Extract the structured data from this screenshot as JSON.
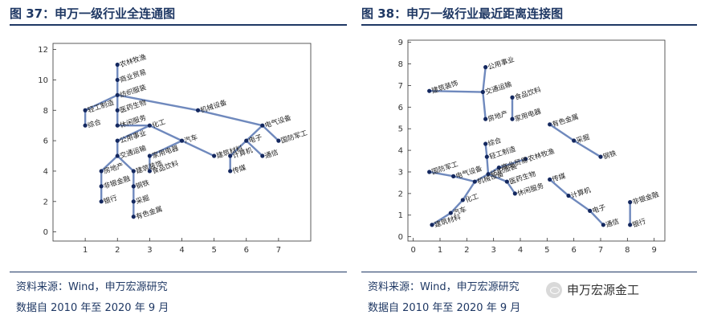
{
  "panels": [
    {
      "title": "图 37：申万一级行业全连通图",
      "source": "资料来源：Wind，申万宏源研究",
      "period": "数据自 2010 年至 2020 年 9 月"
    },
    {
      "title": "图 38：申万一级行业最近距离连接图",
      "source": "资料来源：Wind，申万宏源研究",
      "period": "数据自 2010 年至 2020 年 9 月"
    }
  ],
  "watermark": {
    "text": "申万宏源金工",
    "icon": "wechat-icon"
  },
  "colors": {
    "title": "#1f3864",
    "edge": "#6f89bd",
    "node": "#14285f",
    "axis": "#333333"
  },
  "chart_data": [
    {
      "type": "network",
      "xlim": [
        0,
        8
      ],
      "ylim": [
        -0.6,
        12.4
      ],
      "xticks": [
        1,
        2,
        3,
        4,
        5,
        6,
        7
      ],
      "yticks": [
        0,
        2,
        4,
        6,
        8,
        10,
        12
      ],
      "grid": false,
      "nodes": [
        {
          "id": "农林牧渔",
          "x": 2,
          "y": 11
        },
        {
          "id": "商业贸易",
          "x": 2,
          "y": 10
        },
        {
          "id": "纺织服装",
          "x": 2,
          "y": 9
        },
        {
          "id": "轻工制造",
          "x": 1,
          "y": 8
        },
        {
          "id": "医药生物",
          "x": 2,
          "y": 8
        },
        {
          "id": "机械设备",
          "x": 4.5,
          "y": 8
        },
        {
          "id": "综合",
          "x": 1,
          "y": 7
        },
        {
          "id": "休闲服务",
          "x": 2,
          "y": 7
        },
        {
          "id": "化工",
          "x": 3,
          "y": 7
        },
        {
          "id": "电气设备",
          "x": 6.5,
          "y": 7
        },
        {
          "id": "汽车",
          "x": 4,
          "y": 6
        },
        {
          "id": "电子",
          "x": 6,
          "y": 6
        },
        {
          "id": "国防军工",
          "x": 7,
          "y": 6
        },
        {
          "id": "公用事业",
          "x": 2,
          "y": 6
        },
        {
          "id": "交通运输",
          "x": 2,
          "y": 5
        },
        {
          "id": "家用电器",
          "x": 3,
          "y": 5
        },
        {
          "id": "建筑材料",
          "x": 5,
          "y": 5
        },
        {
          "id": "计算机",
          "x": 5.5,
          "y": 5
        },
        {
          "id": "通信",
          "x": 6.5,
          "y": 5
        },
        {
          "id": "房地产",
          "x": 1.5,
          "y": 4
        },
        {
          "id": "建筑装饰",
          "x": 2.5,
          "y": 4
        },
        {
          "id": "食品饮料",
          "x": 3,
          "y": 4
        },
        {
          "id": "传媒",
          "x": 5.5,
          "y": 4
        },
        {
          "id": "非银金融",
          "x": 1.5,
          "y": 3
        },
        {
          "id": "钢铁",
          "x": 2.5,
          "y": 3
        },
        {
          "id": "银行",
          "x": 1.5,
          "y": 2
        },
        {
          "id": "采掘",
          "x": 2.5,
          "y": 2
        },
        {
          "id": "有色金属",
          "x": 2.5,
          "y": 1
        }
      ],
      "edges": [
        [
          "农林牧渔",
          "商业贸易"
        ],
        [
          "商业贸易",
          "纺织服装"
        ],
        [
          "纺织服装",
          "轻工制造"
        ],
        [
          "纺织服装",
          "医药生物"
        ],
        [
          "纺织服装",
          "机械设备"
        ],
        [
          "轻工制造",
          "综合"
        ],
        [
          "医药生物",
          "休闲服务"
        ],
        [
          "休闲服务",
          "化工"
        ],
        [
          "机械设备",
          "电气设备"
        ],
        [
          "化工",
          "汽车"
        ],
        [
          "化工",
          "公用事业"
        ],
        [
          "电气设备",
          "电子"
        ],
        [
          "电气设备",
          "国防军工"
        ],
        [
          "汽车",
          "家用电器"
        ],
        [
          "汽车",
          "建筑材料"
        ],
        [
          "家用电器",
          "食品饮料"
        ],
        [
          "电子",
          "计算机"
        ],
        [
          "电子",
          "通信"
        ],
        [
          "计算机",
          "传媒"
        ],
        [
          "公用事业",
          "交通运输"
        ],
        [
          "交通运输",
          "房地产"
        ],
        [
          "交通运输",
          "建筑装饰"
        ],
        [
          "房地产",
          "非银金融"
        ],
        [
          "非银金融",
          "银行"
        ],
        [
          "建筑装饰",
          "钢铁"
        ],
        [
          "钢铁",
          "采掘"
        ],
        [
          "采掘",
          "有色金属"
        ]
      ]
    },
    {
      "type": "network",
      "xlim": [
        -0.2,
        9.4
      ],
      "ylim": [
        -0.2,
        9.1
      ],
      "xticks": [
        0,
        1,
        2,
        3,
        4,
        5,
        6,
        7,
        8,
        9
      ],
      "yticks": [
        0,
        1,
        2,
        3,
        4,
        5,
        6,
        7,
        8,
        9
      ],
      "grid": false,
      "nodes": [
        {
          "id": "公用事业",
          "x": 2.7,
          "y": 7.85
        },
        {
          "id": "建筑装饰",
          "x": 0.6,
          "y": 6.75
        },
        {
          "id": "交通运输",
          "x": 2.6,
          "y": 6.7
        },
        {
          "id": "食品饮料",
          "x": 3.7,
          "y": 6.45
        },
        {
          "id": "家用电器",
          "x": 3.7,
          "y": 5.45
        },
        {
          "id": "房地产",
          "x": 2.7,
          "y": 5.45
        },
        {
          "id": "有色金属",
          "x": 5.1,
          "y": 5.2
        },
        {
          "id": "采掘",
          "x": 6.0,
          "y": 4.45
        },
        {
          "id": "综合",
          "x": 2.7,
          "y": 4.3
        },
        {
          "id": "钢铁",
          "x": 7.0,
          "y": 3.7
        },
        {
          "id": "轻工制造",
          "x": 2.75,
          "y": 3.7
        },
        {
          "id": "农林牧渔",
          "x": 4.2,
          "y": 3.6
        },
        {
          "id": "商业贸易",
          "x": 3.2,
          "y": 3.2
        },
        {
          "id": "国防军工",
          "x": 0.6,
          "y": 3.0
        },
        {
          "id": "电气设备",
          "x": 1.5,
          "y": 2.8
        },
        {
          "id": "纺织服装",
          "x": 2.8,
          "y": 2.9
        },
        {
          "id": "机械设备",
          "x": 2.3,
          "y": 2.55
        },
        {
          "id": "医药生物",
          "x": 3.5,
          "y": 2.55
        },
        {
          "id": "传媒",
          "x": 5.1,
          "y": 2.65
        },
        {
          "id": "休闲服务",
          "x": 3.8,
          "y": 2.0
        },
        {
          "id": "计算机",
          "x": 5.8,
          "y": 1.9
        },
        {
          "id": "化工",
          "x": 1.85,
          "y": 1.7
        },
        {
          "id": "非银金融",
          "x": 8.1,
          "y": 1.6
        },
        {
          "id": "汽车",
          "x": 1.4,
          "y": 1.1
        },
        {
          "id": "电子",
          "x": 6.6,
          "y": 1.2
        },
        {
          "id": "建筑材料",
          "x": 0.7,
          "y": 0.55
        },
        {
          "id": "通信",
          "x": 7.1,
          "y": 0.55
        },
        {
          "id": "银行",
          "x": 8.1,
          "y": 0.55
        }
      ],
      "edges": [
        [
          "公用事业",
          "交通运输"
        ],
        [
          "建筑装饰",
          "交通运输"
        ],
        [
          "交通运输",
          "房地产"
        ],
        [
          "食品饮料",
          "家用电器"
        ],
        [
          "有色金属",
          "采掘"
        ],
        [
          "采掘",
          "钢铁"
        ],
        [
          "综合",
          "轻工制造"
        ],
        [
          "轻工制造",
          "纺织服装"
        ],
        [
          "纺织服装",
          "商业贸易"
        ],
        [
          "商业贸易",
          "农林牧渔"
        ],
        [
          "纺织服装",
          "医药生物"
        ],
        [
          "医药生物",
          "休闲服务"
        ],
        [
          "纺织服装",
          "机械设备"
        ],
        [
          "机械设备",
          "电气设备"
        ],
        [
          "电气设备",
          "国防军工"
        ],
        [
          "机械设备",
          "化工"
        ],
        [
          "化工",
          "汽车"
        ],
        [
          "汽车",
          "建筑材料"
        ],
        [
          "传媒",
          "计算机"
        ],
        [
          "计算机",
          "电子"
        ],
        [
          "电子",
          "通信"
        ],
        [
          "非银金融",
          "银行"
        ]
      ]
    }
  ]
}
